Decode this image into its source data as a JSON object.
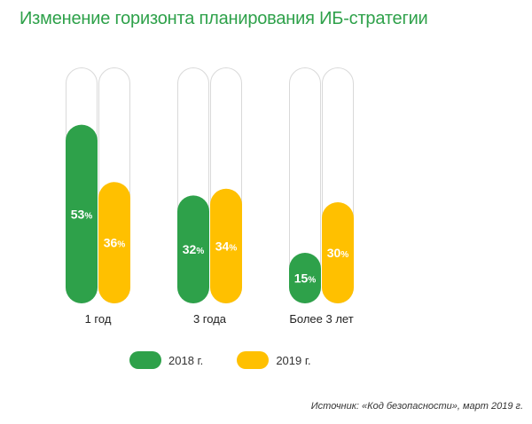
{
  "title": "Изменение горизонта планирования ИБ-стратегии",
  "source": "Источник: «Код безопасности», март 2019 г.",
  "colors": {
    "series_2018": "#2ea14a",
    "series_2019": "#ffc000",
    "track_border": "#d9d9d9",
    "title": "#2ea14a"
  },
  "chart_data": {
    "type": "bar",
    "categories": [
      "1 год",
      "3 года",
      "Более 3 лет"
    ],
    "series": [
      {
        "name": "2018 г.",
        "values": [
          53,
          32,
          15
        ]
      },
      {
        "name": "2019 г.",
        "values": [
          36,
          34,
          30
        ]
      }
    ],
    "value_suffix": "%",
    "ylim": [
      0,
      70
    ],
    "grid": false,
    "legend_position": "bottom"
  }
}
